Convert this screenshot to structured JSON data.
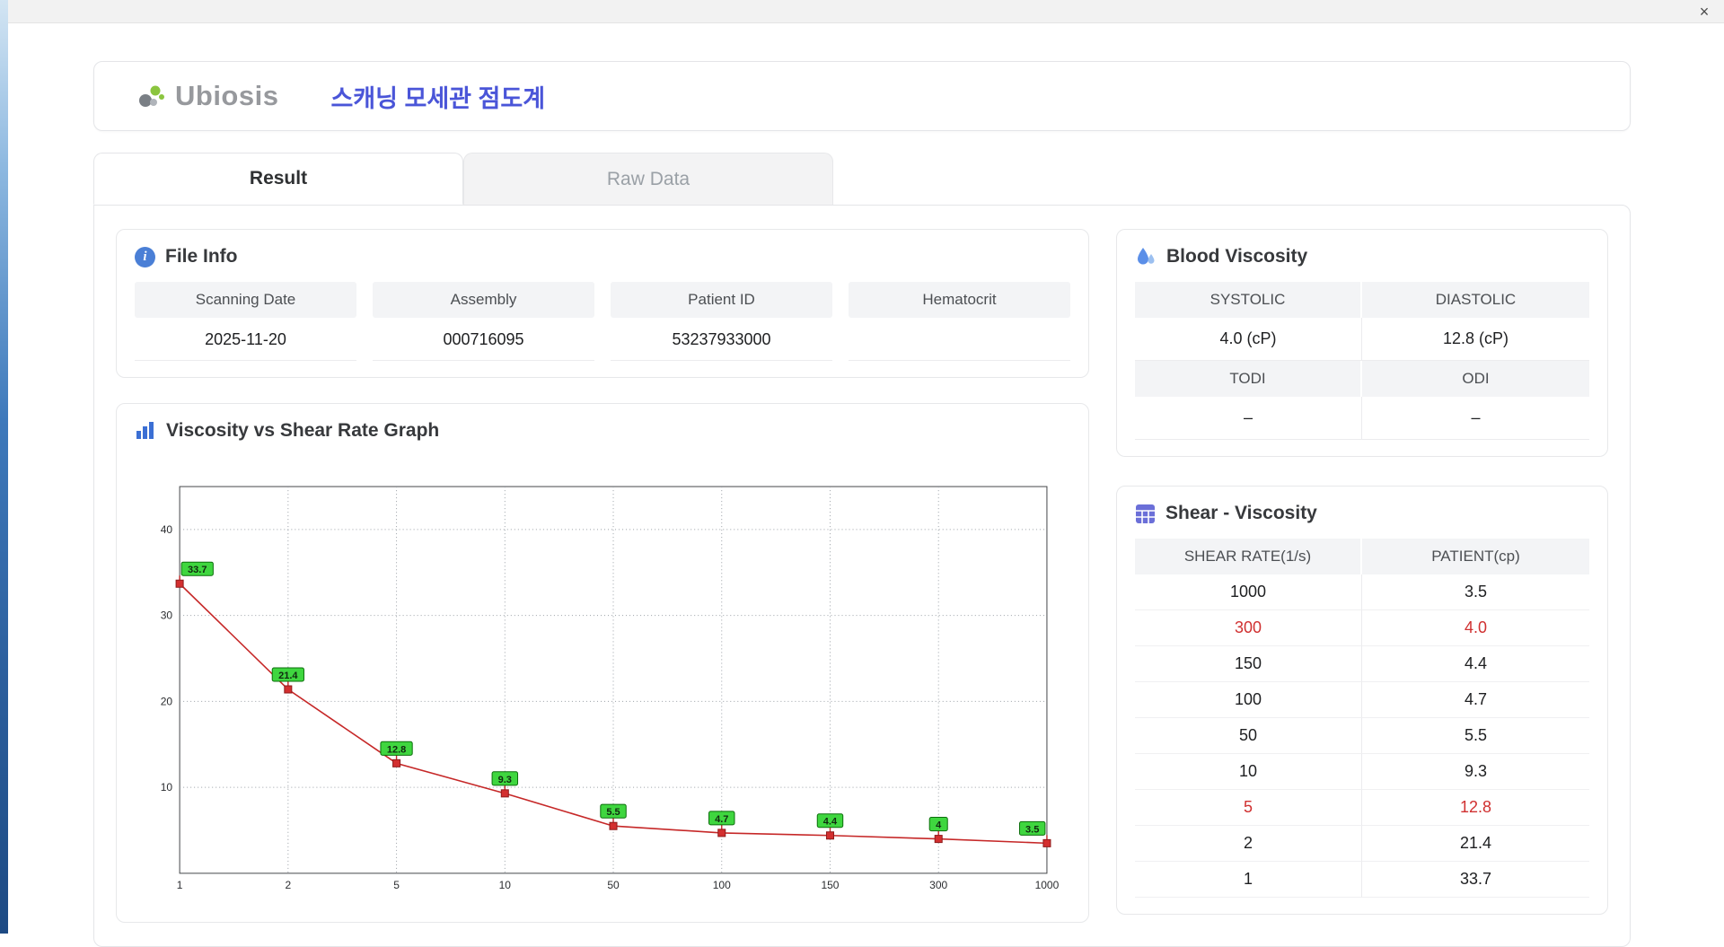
{
  "window": {
    "close_label": "×"
  },
  "header": {
    "brand": "Ubiosis",
    "title": "스캐닝 모세관 점도계"
  },
  "tabs": [
    {
      "label": "Result",
      "active": true
    },
    {
      "label": "Raw Data",
      "active": false
    }
  ],
  "file_info": {
    "title": "File Info",
    "fields": [
      {
        "label": "Scanning Date",
        "value": "2025-11-20"
      },
      {
        "label": "Assembly",
        "value": "000716095"
      },
      {
        "label": "Patient ID",
        "value": "53237933000"
      },
      {
        "label": "Hematocrit",
        "value": ""
      }
    ]
  },
  "blood_viscosity": {
    "title": "Blood Viscosity",
    "cells": [
      {
        "label": "SYSTOLIC",
        "value": "4.0 (cP)"
      },
      {
        "label": "DIASTOLIC",
        "value": "12.8 (cP)"
      },
      {
        "label": "TODI",
        "value": "–"
      },
      {
        "label": "ODI",
        "value": "–"
      }
    ]
  },
  "shear_viscosity": {
    "title": "Shear - Viscosity",
    "columns": [
      "SHEAR RATE(1/s)",
      "PATIENT(cp)"
    ],
    "rows": [
      {
        "shear": "1000",
        "patient": "3.5",
        "highlight": false
      },
      {
        "shear": "300",
        "patient": "4.0",
        "highlight": true
      },
      {
        "shear": "150",
        "patient": "4.4",
        "highlight": false
      },
      {
        "shear": "100",
        "patient": "4.7",
        "highlight": false
      },
      {
        "shear": "50",
        "patient": "5.5",
        "highlight": false
      },
      {
        "shear": "10",
        "patient": "9.3",
        "highlight": false
      },
      {
        "shear": "5",
        "patient": "12.8",
        "highlight": true
      },
      {
        "shear": "2",
        "patient": "21.4",
        "highlight": false
      },
      {
        "shear": "1",
        "patient": "33.7",
        "highlight": false
      }
    ]
  },
  "chart_data": {
    "type": "line",
    "title": "Viscosity vs Shear Rate Graph",
    "xlabel": "",
    "ylabel": "",
    "x_labels": [
      "1",
      "2",
      "5",
      "10",
      "50",
      "100",
      "150",
      "300",
      "1000"
    ],
    "values": [
      33.7,
      21.4,
      12.8,
      9.3,
      5.5,
      4.7,
      4.4,
      4.0,
      3.5
    ],
    "point_labels": [
      "33.7",
      "21.4",
      "12.8",
      "9.3",
      "5.5",
      "4.7",
      "4.4",
      "4",
      "3.5"
    ],
    "y_ticks": [
      10,
      20,
      30,
      40
    ],
    "ylim": [
      0,
      45
    ],
    "x_scale": "categorical",
    "grid": true,
    "legend": false,
    "line_color": "#c62828",
    "marker_color": "#d32f2f",
    "marker_stroke": "#8e1b1b",
    "label_bg": "#3fd63f",
    "label_border": "#0b6e0b",
    "grid_color": "#9aa0a6",
    "accent_blue": "#4a55d8"
  }
}
